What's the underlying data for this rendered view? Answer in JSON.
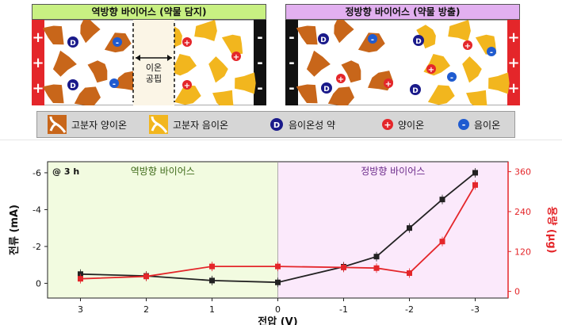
{
  "panels": {
    "left": {
      "title": "역방향 바이어스 (약물 담지)",
      "ion_gap_label": "이온\n공핍"
    },
    "right": {
      "title": "정방향 바이어스 (약물 방출)"
    }
  },
  "legend": {
    "items": [
      {
        "icon": "polymer-cation-icon",
        "label": "고분자 양이온",
        "color": "#c8661a"
      },
      {
        "icon": "polymer-anion-icon",
        "label": "고분자 음이온",
        "color": "#f2b61e"
      },
      {
        "icon": "drug-anion-icon",
        "label": "음이온성 약",
        "color": "#1a1a8a"
      },
      {
        "icon": "cation-icon",
        "label": "양이온",
        "color": "#e4262a"
      },
      {
        "icon": "anion-icon",
        "label": "음이온",
        "color": "#1f5bd0"
      }
    ]
  },
  "chart_data": {
    "type": "line",
    "annotation": "@ 3 h",
    "region_labels": {
      "left": "역방향 바이어스",
      "right": "정방향 바이어스"
    },
    "xlabel": "전압 (V)",
    "ylabel_left": "전류 (mA)",
    "ylabel_right": "용량 (μg)",
    "x_ticks": [
      "3",
      "2",
      "1",
      "0",
      "-1",
      "-2",
      "-3"
    ],
    "y_left_ticks": [
      "-6",
      "-4",
      "-2",
      "0"
    ],
    "y_right_ticks": [
      "360",
      "240",
      "120",
      "0"
    ],
    "xlim": [
      3.5,
      -3.5
    ],
    "ylim_left": [
      0.8,
      -6.6
    ],
    "ylim_right": [
      -20,
      390
    ],
    "series": [
      {
        "axis": "left",
        "color": "#222222",
        "x": [
          3,
          2,
          1,
          0,
          -1,
          -1.5,
          -2,
          -2.5,
          -3
        ],
        "y": [
          -0.5,
          -0.4,
          -0.15,
          -0.05,
          -0.9,
          -1.45,
          -3.0,
          -4.55,
          -6.0
        ]
      },
      {
        "axis": "right",
        "color": "#e4262a",
        "x": [
          3,
          2,
          1,
          0,
          -1,
          -1.5,
          -2,
          -2.5,
          -3
        ],
        "y": [
          38,
          45,
          75,
          75,
          72,
          70,
          55,
          150,
          320
        ]
      }
    ],
    "colors": {
      "reverse_region": "#f2fbe0",
      "forward_region": "#fbe9fb",
      "right_axis": "#e4262a"
    }
  }
}
